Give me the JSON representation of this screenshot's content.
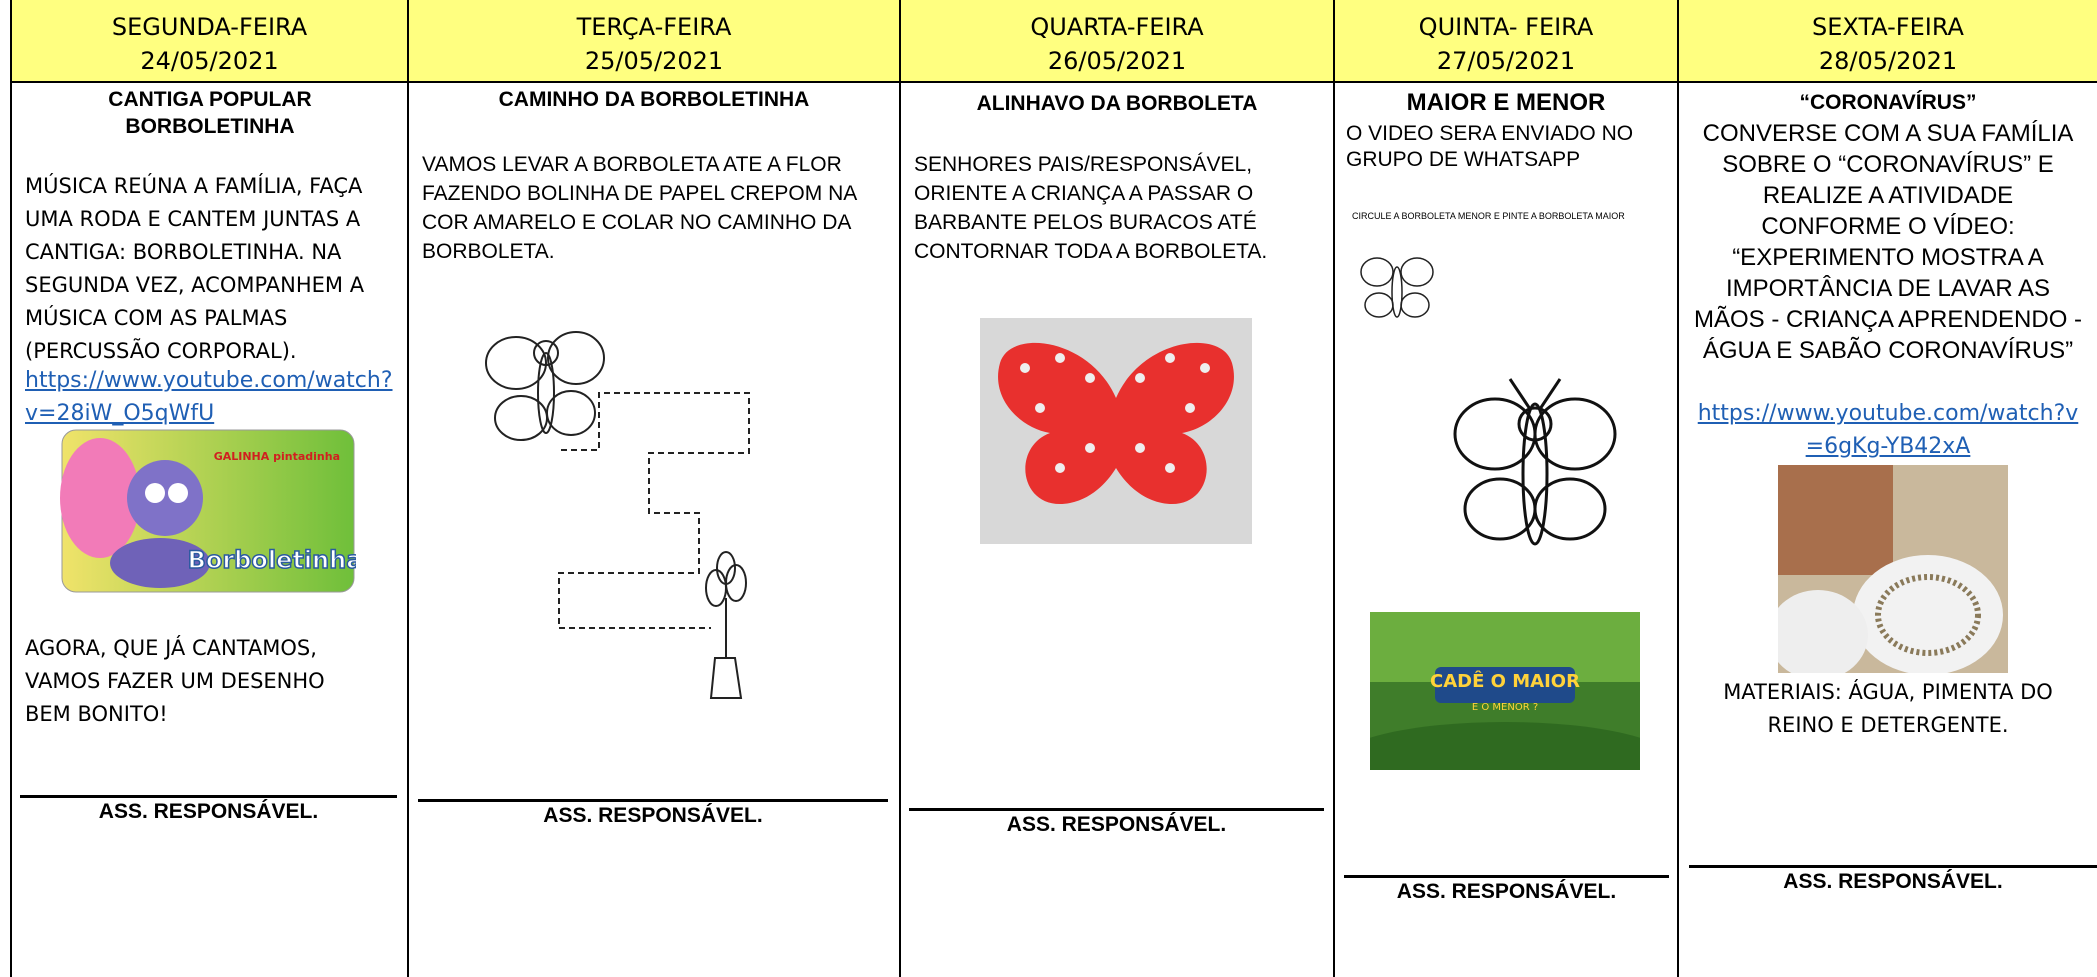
{
  "columns": [
    {
      "day": "SEGUNDA-FEIRA",
      "date": "24/05/2021",
      "title": "CANTIGA POPULAR BORBOLETINHA",
      "text": "MÚSICA REÚNA A FAMÍLIA, FAÇA UMA RODA E CANTEM JUNTAS A CANTIGA: BORBOLETINHA. NA SEGUNDA VEZ, ACOMPANHEM A MÚSICA COM AS PALMAS (PERCUSSÃO CORPORAL).",
      "link": "https://www.youtube.com/watch?v=28iW_O5qWfU",
      "image_brand": "GALINHA pintadinha",
      "image_label": "Borboletinha",
      "text_after": "AGORA, QUE JÁ CANTAMOS, VAMOS FAZER UM DESENHO BEM BONITO!",
      "signature": "ASS. RESPONSÁVEL."
    },
    {
      "day": "TERÇA-FEIRA",
      "date": "25/05/2021",
      "title": "CAMINHO DA BORBOLETINHA",
      "text": "VAMOS LEVAR A BORBOLETA ATE A FLOR FAZENDO BOLINHA DE PAPEL CREPOM NA COR AMARELO E COLAR NO CAMINHO DA BORBOLETA.",
      "signature": "ASS. RESPONSÁVEL."
    },
    {
      "day": "QUARTA-FEIRA",
      "date": "26/05/2021",
      "title": "ALINHAVO DA BORBOLETA",
      "text": "SENHORES PAIS/RESPONSÁVEL, ORIENTE A CRIANÇA A PASSAR O BARBANTE PELOS BURACOS ATÉ CONTORNAR TODA A BORBOLETA.",
      "signature": "ASS. RESPONSÁVEL."
    },
    {
      "day": "QUINTA- FEIRA",
      "date": "27/05/2021",
      "title": "MAIOR E MENOR",
      "text": "O VIDEO SERA ENVIADO NO GRUPO DE WHATSAPP",
      "worksheet": "CIRCULE A BORBOLETA MENOR E PINTE A BORBOLETA MAIOR",
      "image_title": "CADÊ O MAIOR",
      "image_subtitle": "E O MENOR ?",
      "signature": "ASS. RESPONSÁVEL."
    },
    {
      "day": "SEXTA-FEIRA",
      "date": "28/05/2021",
      "title": "“CORONAVÍRUS”",
      "text": "CONVERSE COM A SUA FAMÍLIA SOBRE O “CORONAVÍRUS” E REALIZE A ATIVIDADE CONFORME O VÍDEO: “EXPERIMENTO MOSTRA A IMPORTÂNCIA DE LAVAR AS MÃOS - CRIANÇA APRENDENDO - ÁGUA E SABÃO CORONAVÍRUS”",
      "link": "https://www.youtube.com/watch?v=6gKg-YB42xA",
      "materials": "MATERIAIS: ÁGUA, PIMENTA DO REINO E DETERGENTE.",
      "signature": "ASS. RESPONSÁVEL."
    }
  ]
}
